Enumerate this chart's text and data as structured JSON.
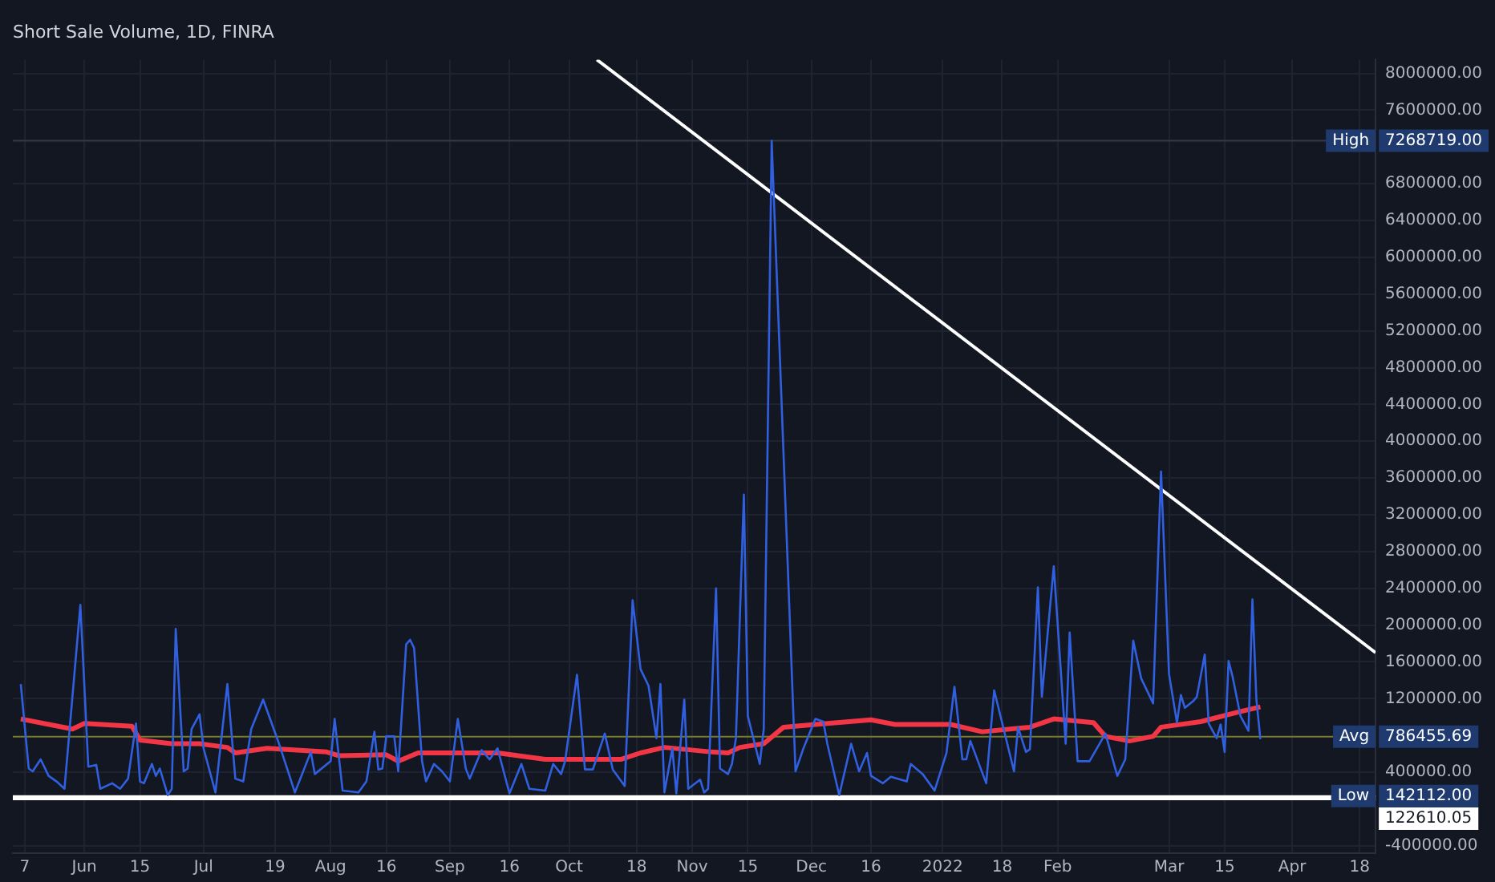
{
  "chart_data": {
    "type": "line",
    "title": "Short Sale Volume, 1D, FINRA",
    "xlim": [
      "2021-05-14",
      "2022-04-22"
    ],
    "xticks": [
      {
        "value": "2021-05-17",
        "label": "7"
      },
      {
        "value": "2021-06-01",
        "label": "Jun"
      },
      {
        "value": "2021-06-15",
        "label": "15"
      },
      {
        "value": "2021-07-01",
        "label": "Jul"
      },
      {
        "value": "2021-07-19",
        "label": "19"
      },
      {
        "value": "2021-08-02",
        "label": "Aug"
      },
      {
        "value": "2021-08-16",
        "label": "16"
      },
      {
        "value": "2021-09-01",
        "label": "Sep"
      },
      {
        "value": "2021-09-16",
        "label": "16"
      },
      {
        "value": "2021-10-01",
        "label": "Oct"
      },
      {
        "value": "2021-10-18",
        "label": "18"
      },
      {
        "value": "2021-11-01",
        "label": "Nov"
      },
      {
        "value": "2021-11-15",
        "label": "15"
      },
      {
        "value": "2021-12-01",
        "label": "Dec"
      },
      {
        "value": "2021-12-16",
        "label": "16"
      },
      {
        "value": "2022-01-03",
        "label": "2022"
      },
      {
        "value": "2022-01-18",
        "label": "18"
      },
      {
        "value": "2022-02-01",
        "label": "Feb"
      },
      {
        "value": "2022-03-01",
        "label": "Mar"
      },
      {
        "value": "2022-03-15",
        "label": "15"
      },
      {
        "value": "2022-04-01",
        "label": "Apr"
      },
      {
        "value": "2022-04-18",
        "label": "18"
      }
    ],
    "ylim": [
      -480000,
      8150000
    ],
    "yticks": [
      {
        "value": 8000000,
        "label": "8000000.00"
      },
      {
        "value": 7600000,
        "label": "7600000.00"
      },
      {
        "value": 6800000,
        "label": "6800000.00"
      },
      {
        "value": 6400000,
        "label": "6400000.00"
      },
      {
        "value": 6000000,
        "label": "6000000.00"
      },
      {
        "value": 5600000,
        "label": "5600000.00"
      },
      {
        "value": 5200000,
        "label": "5200000.00"
      },
      {
        "value": 4800000,
        "label": "4800000.00"
      },
      {
        "value": 4400000,
        "label": "4400000.00"
      },
      {
        "value": 4000000,
        "label": "4000000.00"
      },
      {
        "value": 3600000,
        "label": "3600000.00"
      },
      {
        "value": 3200000,
        "label": "3200000.00"
      },
      {
        "value": 2800000,
        "label": "2800000.00"
      },
      {
        "value": 2400000,
        "label": "2400000.00"
      },
      {
        "value": 2000000,
        "label": "2000000.00"
      },
      {
        "value": 1600000,
        "label": "1600000.00"
      },
      {
        "value": 1200000,
        "label": "1200000.00"
      },
      {
        "value": 400000,
        "label": "400000.00"
      },
      {
        "value": -400000,
        "label": "-400000.00"
      }
    ],
    "annotations": [
      "7268719.00",
      "786455.69",
      "142112.00",
      "122610.05"
    ],
    "grid": true,
    "legend": false,
    "marker": "none",
    "line_style": "solid",
    "ref_lines": [
      {
        "axis": "y",
        "value": 7268719,
        "label": "High",
        "color": "#363a45"
      },
      {
        "axis": "y",
        "value": 786455.69,
        "label": "Avg",
        "color": "#7a7a2e"
      },
      {
        "axis": "y",
        "value": 142112,
        "label": "Low",
        "color": "#d1d4dc"
      },
      {
        "axis": "y",
        "value": 122610.05,
        "label": null,
        "color": "#ffffff"
      }
    ],
    "series": [
      {
        "color": "#3060e0",
        "x": [
          "2021-05-16",
          "2021-05-18",
          "2021-05-19",
          "2021-05-21",
          "2021-05-23",
          "2021-05-25",
          "2021-05-27",
          "2021-05-31",
          "2021-06-02",
          "2021-06-04",
          "2021-06-05",
          "2021-06-08",
          "2021-06-10",
          "2021-06-12",
          "2021-06-14",
          "2021-06-15",
          "2021-06-16",
          "2021-06-18",
          "2021-06-19",
          "2021-06-20",
          "2021-06-22",
          "2021-06-23",
          "2021-06-24",
          "2021-06-26",
          "2021-06-27",
          "2021-06-28",
          "2021-06-30",
          "2021-07-01",
          "2021-07-04",
          "2021-07-07",
          "2021-07-09",
          "2021-07-11",
          "2021-07-13",
          "2021-07-16",
          "2021-07-20",
          "2021-07-24",
          "2021-07-28",
          "2021-07-29",
          "2021-08-02",
          "2021-08-03",
          "2021-08-05",
          "2021-08-09",
          "2021-08-11",
          "2021-08-13",
          "2021-08-14",
          "2021-08-15",
          "2021-08-16",
          "2021-08-18",
          "2021-08-19",
          "2021-08-21",
          "2021-08-22",
          "2021-08-23",
          "2021-08-25",
          "2021-08-26",
          "2021-08-28",
          "2021-08-30",
          "2021-09-01",
          "2021-09-03",
          "2021-09-05",
          "2021-09-06",
          "2021-09-09",
          "2021-09-11",
          "2021-09-13",
          "2021-09-16",
          "2021-09-19",
          "2021-09-21",
          "2021-09-25",
          "2021-09-27",
          "2021-09-29",
          "2021-09-30",
          "2021-10-03",
          "2021-10-05",
          "2021-10-07",
          "2021-10-10",
          "2021-10-12",
          "2021-10-15",
          "2021-10-17",
          "2021-10-19",
          "2021-10-21",
          "2021-10-23",
          "2021-10-24",
          "2021-10-25",
          "2021-10-27",
          "2021-10-28",
          "2021-10-30",
          "2021-10-31",
          "2021-11-03",
          "2021-11-04",
          "2021-11-05",
          "2021-11-07",
          "2021-11-08",
          "2021-11-10",
          "2021-11-11",
          "2021-11-12",
          "2021-11-14",
          "2021-11-15",
          "2021-11-18",
          "2021-11-19",
          "2021-11-21",
          "2021-11-27",
          "2021-11-29",
          "2021-12-02",
          "2021-12-04",
          "2021-12-05",
          "2021-12-08",
          "2021-12-11",
          "2021-12-13",
          "2021-12-15",
          "2021-12-16",
          "2021-12-19",
          "2021-12-21",
          "2021-12-25",
          "2021-12-26",
          "2021-12-29",
          "2022-01-01",
          "2022-01-04",
          "2022-01-06",
          "2022-01-08",
          "2022-01-09",
          "2022-01-10",
          "2022-01-14",
          "2022-01-16",
          "2022-01-21",
          "2022-01-22",
          "2022-01-24",
          "2022-01-25",
          "2022-01-27",
          "2022-01-28",
          "2022-01-31",
          "2022-02-03",
          "2022-02-04",
          "2022-02-06",
          "2022-02-09",
          "2022-02-13",
          "2022-02-16",
          "2022-02-18",
          "2022-02-20",
          "2022-02-22",
          "2022-02-25",
          "2022-02-27",
          "2022-03-01",
          "2022-03-03",
          "2022-03-04",
          "2022-03-05",
          "2022-03-07",
          "2022-03-08",
          "2022-03-10",
          "2022-03-11",
          "2022-03-13",
          "2022-03-14",
          "2022-03-15",
          "2022-03-16",
          "2022-03-17",
          "2022-03-19",
          "2022-03-21",
          "2022-03-22",
          "2022-03-23",
          "2022-03-24"
        ],
        "values": [
          1360000,
          440000,
          410000,
          540000,
          360000,
          300000,
          220000,
          2220000,
          460000,
          480000,
          220000,
          280000,
          220000,
          330000,
          930000,
          300000,
          280000,
          490000,
          360000,
          440000,
          150000,
          220000,
          1960000,
          410000,
          440000,
          870000,
          1030000,
          660000,
          180000,
          1360000,
          330000,
          300000,
          870000,
          1190000,
          710000,
          180000,
          620000,
          380000,
          520000,
          980000,
          200000,
          180000,
          300000,
          840000,
          430000,
          440000,
          790000,
          790000,
          410000,
          1790000,
          1840000,
          1750000,
          520000,
          300000,
          490000,
          410000,
          300000,
          980000,
          440000,
          330000,
          640000,
          540000,
          660000,
          170000,
          490000,
          220000,
          200000,
          490000,
          380000,
          520000,
          1460000,
          430000,
          430000,
          820000,
          430000,
          250000,
          2270000,
          1520000,
          1340000,
          770000,
          1360000,
          180000,
          660000,
          170000,
          1190000,
          220000,
          320000,
          180000,
          220000,
          2400000,
          440000,
          380000,
          490000,
          770000,
          3420000,
          1010000,
          490000,
          870000,
          7268719,
          410000,
          660000,
          980000,
          950000,
          710000,
          150000,
          710000,
          410000,
          610000,
          360000,
          280000,
          350000,
          300000,
          490000,
          380000,
          200000,
          610000,
          1330000,
          540000,
          540000,
          740000,
          280000,
          1290000,
          410000,
          890000,
          620000,
          650000,
          2410000,
          1220000,
          2640000,
          710000,
          1920000,
          520000,
          520000,
          820000,
          360000,
          540000,
          1830000,
          1420000,
          1150000,
          3670000,
          1470000,
          940000,
          1240000,
          1100000,
          1170000,
          1220000,
          1680000,
          930000,
          770000,
          920000,
          620000,
          1610000,
          1440000,
          1010000,
          850000,
          2280000,
          1190000,
          760000
        ]
      },
      {
        "color": "#f23645",
        "x": [
          "2021-05-16",
          "2021-05-29",
          "2021-06-01",
          "2021-06-13",
          "2021-06-15",
          "2021-06-23",
          "2021-06-30",
          "2021-07-07",
          "2021-07-09",
          "2021-07-17",
          "2021-08-01",
          "2021-08-04",
          "2021-08-16",
          "2021-08-19",
          "2021-08-24",
          "2021-09-06",
          "2021-09-13",
          "2021-09-25",
          "2021-10-14",
          "2021-10-19",
          "2021-10-25",
          "2021-11-06",
          "2021-11-10",
          "2021-11-13",
          "2021-11-19",
          "2021-11-24",
          "2021-12-02",
          "2021-12-16",
          "2021-12-22",
          "2022-01-05",
          "2022-01-13",
          "2022-01-25",
          "2022-01-31",
          "2022-02-10",
          "2022-02-13",
          "2022-02-19",
          "2022-02-25",
          "2022-02-27",
          "2022-03-09",
          "2022-03-19",
          "2022-03-24"
        ],
        "values": [
          980000,
          870000,
          930000,
          900000,
          750000,
          710000,
          710000,
          670000,
          610000,
          660000,
          620000,
          580000,
          590000,
          520000,
          610000,
          610000,
          610000,
          540000,
          540000,
          610000,
          670000,
          620000,
          610000,
          670000,
          710000,
          890000,
          920000,
          970000,
          920000,
          920000,
          840000,
          890000,
          980000,
          940000,
          790000,
          740000,
          790000,
          890000,
          950000,
          1060000,
          1110000
        ]
      },
      {
        "type": "line",
        "color": "#ffffff",
        "x": [
          "2021-10-08",
          "2022-04-22"
        ],
        "values": [
          8150000,
          1700000
        ]
      }
    ]
  }
}
